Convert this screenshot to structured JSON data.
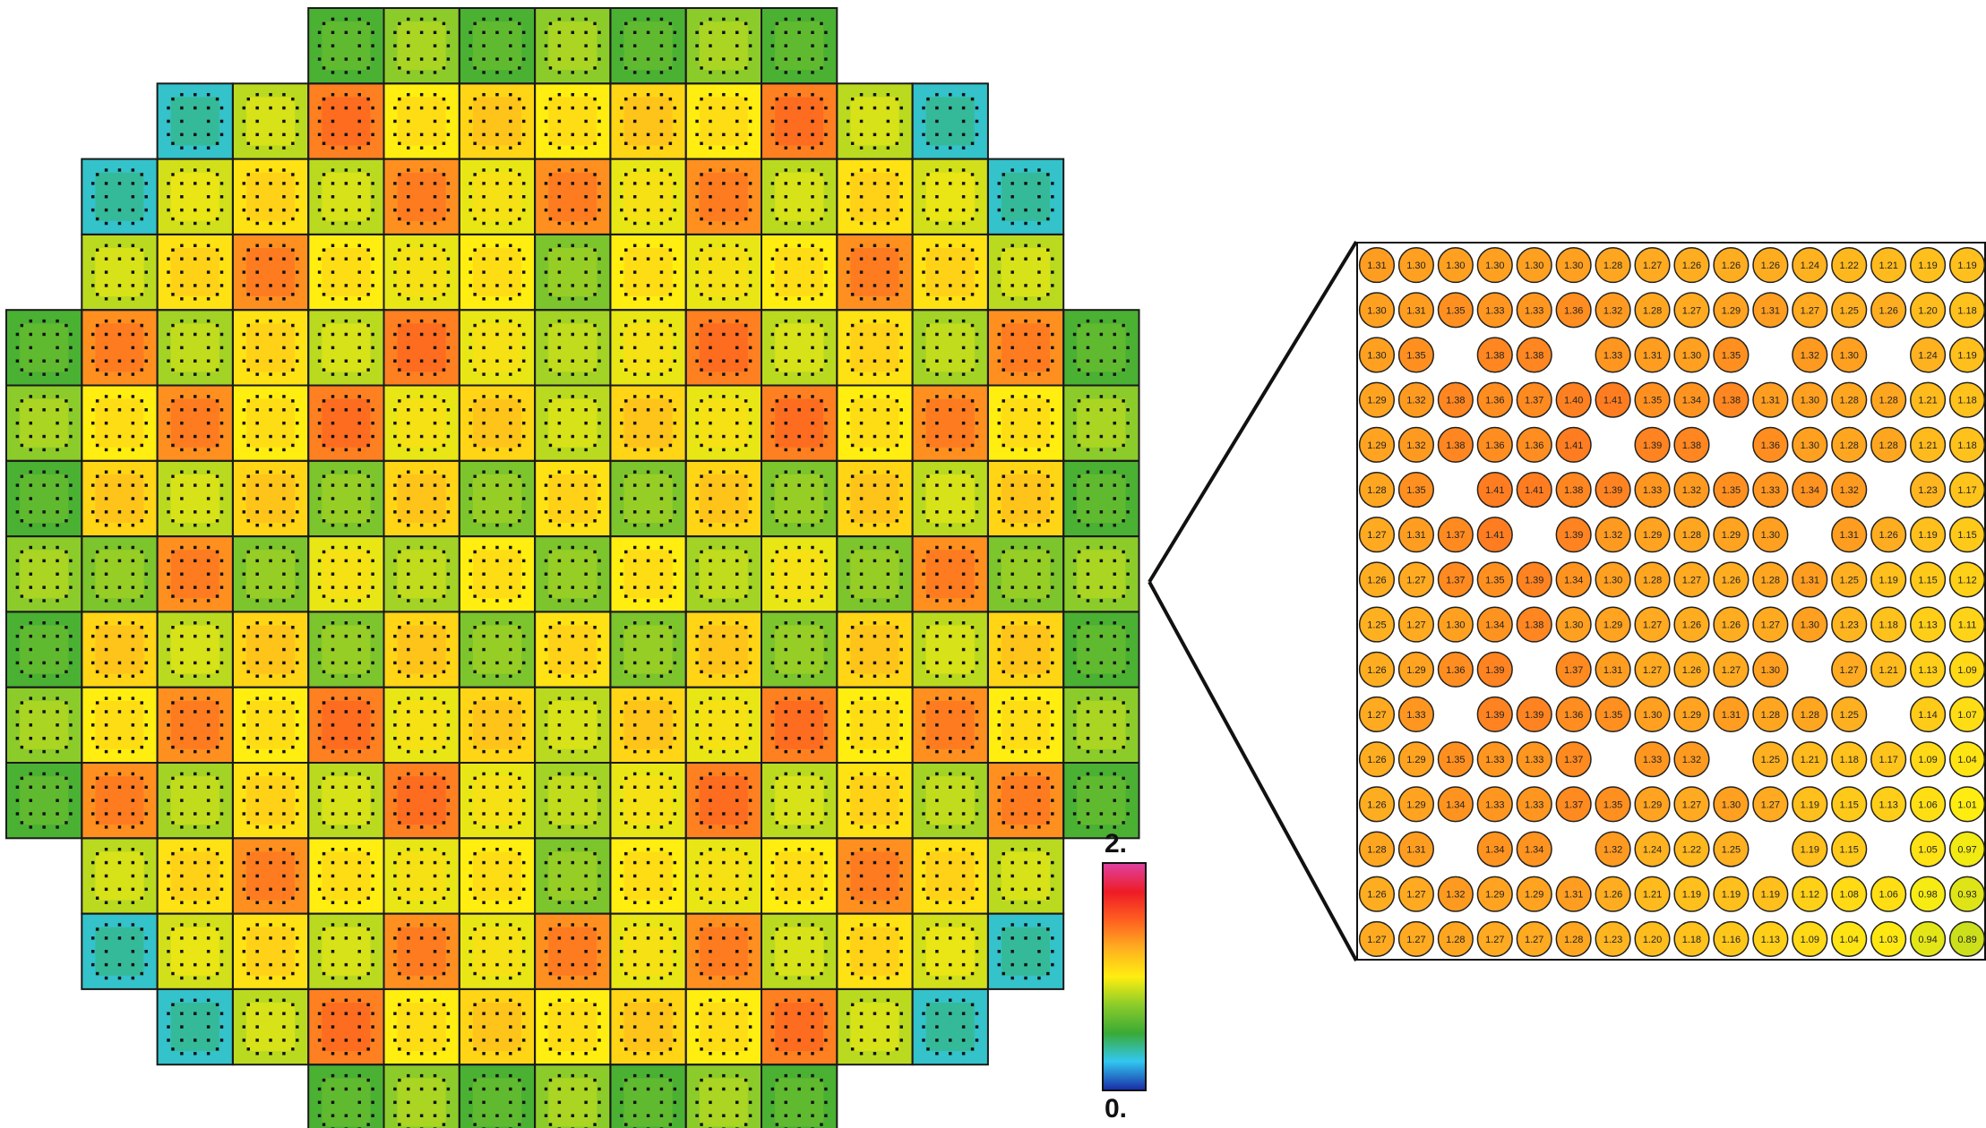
{
  "colorbar": {
    "max_label": "2.",
    "min_label": "0.",
    "max": 2.0,
    "min": 0.0,
    "colors": [
      "#1a2fa8",
      "#32c8f0",
      "#3aaa35",
      "#8ccc2a",
      "#ffee10",
      "#ffb020",
      "#ff6020",
      "#ee1c25",
      "#e040a0"
    ]
  },
  "core_map": {
    "rows": [
      [
        null,
        null,
        null,
        null,
        0.55,
        0.75,
        0.55,
        0.75,
        0.55,
        0.75,
        0.55,
        null,
        null,
        null,
        null
      ],
      [
        null,
        null,
        0.3,
        0.85,
        1.4,
        1.0,
        1.1,
        1.0,
        1.1,
        1.0,
        1.4,
        0.85,
        0.3,
        null,
        null
      ],
      [
        null,
        0.3,
        0.9,
        1.05,
        0.85,
        1.35,
        0.95,
        1.35,
        0.95,
        1.35,
        0.85,
        1.05,
        0.9,
        0.3,
        null
      ],
      [
        null,
        0.85,
        1.05,
        1.35,
        1.0,
        0.95,
        1.0,
        0.7,
        1.0,
        0.95,
        1.0,
        1.35,
        1.05,
        0.85,
        null
      ],
      [
        0.55,
        1.35,
        0.8,
        1.05,
        0.85,
        1.4,
        0.95,
        0.8,
        0.95,
        1.4,
        0.85,
        1.05,
        0.8,
        1.35,
        0.55
      ],
      [
        0.75,
        1.0,
        1.35,
        1.0,
        1.4,
        0.95,
        1.1,
        0.85,
        1.1,
        0.95,
        1.4,
        1.0,
        1.35,
        1.0,
        0.75
      ],
      [
        0.55,
        1.1,
        0.85,
        1.1,
        0.7,
        1.1,
        0.7,
        1.05,
        0.7,
        1.1,
        0.7,
        1.1,
        0.85,
        1.1,
        0.55
      ],
      [
        0.75,
        0.7,
        1.35,
        0.7,
        0.95,
        0.8,
        1.0,
        0.7,
        1.0,
        0.8,
        0.95,
        0.7,
        1.35,
        0.7,
        0.75
      ],
      [
        0.55,
        1.1,
        0.85,
        1.1,
        0.7,
        1.1,
        0.7,
        1.05,
        0.7,
        1.1,
        0.7,
        1.1,
        0.85,
        1.1,
        0.55
      ],
      [
        0.75,
        1.0,
        1.35,
        1.0,
        1.4,
        0.95,
        1.1,
        0.85,
        1.1,
        0.95,
        1.4,
        1.0,
        1.35,
        1.0,
        0.75
      ],
      [
        0.55,
        1.35,
        0.8,
        1.05,
        0.85,
        1.4,
        0.95,
        0.8,
        0.95,
        1.4,
        0.85,
        1.05,
        0.8,
        1.35,
        0.55
      ],
      [
        null,
        0.85,
        1.05,
        1.35,
        1.0,
        0.95,
        1.0,
        0.7,
        1.0,
        0.95,
        1.0,
        1.35,
        1.05,
        0.85,
        null
      ],
      [
        null,
        0.3,
        0.9,
        1.05,
        0.85,
        1.35,
        0.95,
        1.35,
        0.95,
        1.35,
        0.85,
        1.05,
        0.9,
        0.3,
        null
      ],
      [
        null,
        null,
        0.3,
        0.85,
        1.4,
        1.0,
        1.1,
        1.0,
        1.1,
        1.0,
        1.4,
        0.85,
        0.3,
        null,
        null
      ],
      [
        null,
        null,
        null,
        null,
        0.55,
        0.75,
        0.55,
        0.75,
        0.55,
        0.75,
        0.55,
        null,
        null,
        null,
        null
      ]
    ]
  },
  "pin_map": {
    "values": [
      [
        "1.31",
        "1.30",
        "1.30",
        "1.30",
        "1.30",
        "1.30",
        "1.28",
        "1.27",
        "1.26",
        "1.26",
        "1.26",
        "1.24",
        "1.22",
        "1.21",
        "1.19",
        "1.19"
      ],
      [
        "1.30",
        "1.31",
        "1.35",
        "1.33",
        "1.33",
        "1.36",
        "1.32",
        "1.28",
        "1.27",
        "1.29",
        "1.31",
        "1.27",
        "1.25",
        "1.26",
        "1.20",
        "1.18"
      ],
      [
        "1.30",
        "1.35",
        "",
        "1.38",
        "1.38",
        "",
        "1.33",
        "1.31",
        "1.30",
        "1.35",
        "",
        "1.32",
        "1.30",
        "",
        "1.24",
        "1.19"
      ],
      [
        "1.29",
        "1.32",
        "1.38",
        "1.36",
        "1.37",
        "1.40",
        "1.41",
        "1.35",
        "1.34",
        "1.38",
        "1.31",
        "1.30",
        "1.28",
        "1.28",
        "1.21",
        "1.18"
      ],
      [
        "1.29",
        "1.32",
        "1.38",
        "1.36",
        "1.36",
        "1.41",
        "",
        "1.39",
        "1.38",
        "",
        "1.36",
        "1.30",
        "1.28",
        "1.28",
        "1.21",
        "1.18"
      ],
      [
        "1.28",
        "1.35",
        "",
        "1.41",
        "1.41",
        "1.38",
        "1.39",
        "1.33",
        "1.32",
        "1.35",
        "1.33",
        "1.34",
        "1.32",
        "",
        "1.23",
        "1.17"
      ],
      [
        "1.27",
        "1.31",
        "1.37",
        "1.41",
        "",
        "1.39",
        "1.32",
        "1.29",
        "1.28",
        "1.29",
        "1.30",
        "",
        "1.31",
        "1.26",
        "1.19",
        "1.15"
      ],
      [
        "1.26",
        "1.27",
        "1.37",
        "1.35",
        "1.39",
        "1.34",
        "1.30",
        "1.28",
        "1.27",
        "1.26",
        "1.28",
        "1.31",
        "1.25",
        "1.19",
        "1.15",
        "1.12"
      ],
      [
        "1.25",
        "1.27",
        "1.30",
        "1.34",
        "1.38",
        "1.30",
        "1.29",
        "1.27",
        "1.26",
        "1.26",
        "1.27",
        "1.30",
        "1.23",
        "1.18",
        "1.13",
        "1.11"
      ],
      [
        "1.26",
        "1.29",
        "1.36",
        "1.39",
        "",
        "1.37",
        "1.31",
        "1.27",
        "1.26",
        "1.27",
        "1.30",
        "",
        "1.27",
        "1.21",
        "1.13",
        "1.09"
      ],
      [
        "1.27",
        "1.33",
        "",
        "1.39",
        "1.39",
        "1.36",
        "1.35",
        "1.30",
        "1.29",
        "1.31",
        "1.28",
        "1.28",
        "1.25",
        "",
        "1.14",
        "1.07"
      ],
      [
        "1.26",
        "1.29",
        "1.35",
        "1.33",
        "1.33",
        "1.37",
        "",
        "1.33",
        "1.32",
        "",
        "1.25",
        "1.21",
        "1.18",
        "1.17",
        "1.09",
        "1.04"
      ],
      [
        "1.26",
        "1.29",
        "1.34",
        "1.33",
        "1.33",
        "1.37",
        "1.35",
        "1.29",
        "1.27",
        "1.30",
        "1.27",
        "1.19",
        "1.15",
        "1.13",
        "1.06",
        "1.01"
      ],
      [
        "1.28",
        "1.31",
        "",
        "1.34",
        "1.34",
        "",
        "1.32",
        "1.24",
        "1.22",
        "1.25",
        "",
        "1.19",
        "1.15",
        "",
        "1.05",
        "0.97"
      ],
      [
        "1.26",
        "1.27",
        "1.32",
        "1.29",
        "1.29",
        "1.31",
        "1.26",
        "1.21",
        "1.19",
        "1.19",
        "1.19",
        "1.12",
        "1.08",
        "1.06",
        "0.98",
        "0.93"
      ],
      [
        "1.27",
        "1.27",
        "1.28",
        "1.27",
        "1.27",
        "1.28",
        "1.23",
        "1.20",
        "1.18",
        "1.16",
        "1.13",
        "1.09",
        "1.04",
        "1.03",
        "0.94",
        "0.89"
      ]
    ]
  }
}
